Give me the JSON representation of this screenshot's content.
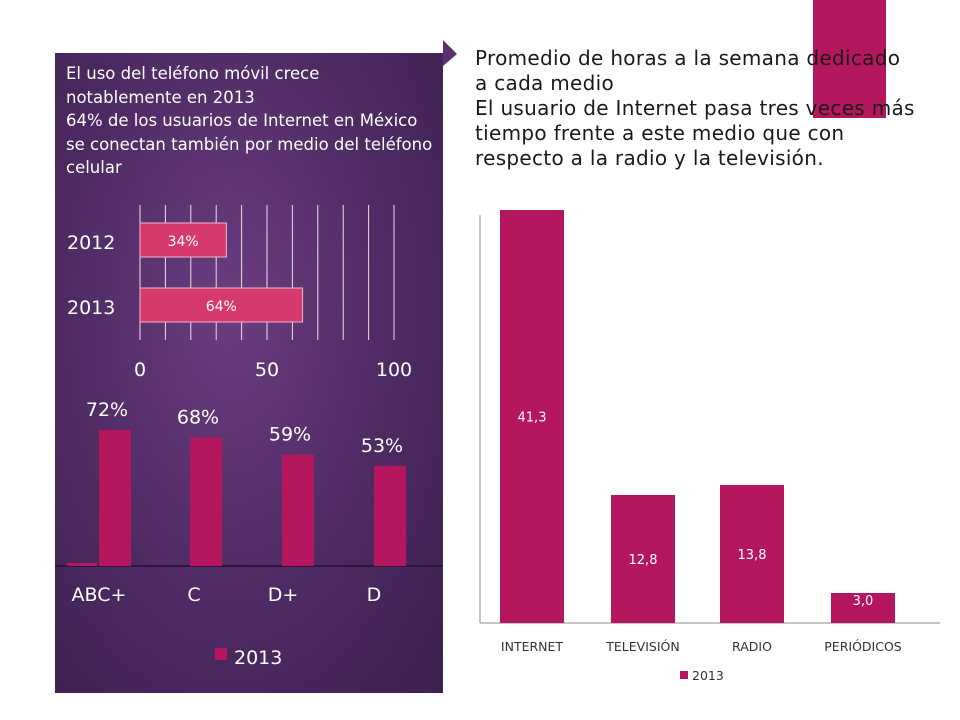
{
  "left_panel": {
    "lines": [
      "El uso del  teléfono móvil crece notablemente en 2013",
      "64% de los usuarios de Internet en México se conectan también por medio del teléfono celular"
    ]
  },
  "right_header": {
    "lines": [
      "Promedio de horas a la semana dedicado a cada medio",
      "El usuario de Internet pasa tres veces más tiempo frente a este medio que con respecto a la radio y la televisión."
    ]
  },
  "colors": {
    "bar": "#b5175f",
    "panel": "#4e2a62",
    "text_light": "#ffffff"
  },
  "chart_data": [
    {
      "type": "bar",
      "orientation": "horizontal",
      "categories": [
        "2012",
        "2013"
      ],
      "values": [
        34,
        64
      ],
      "data_labels": [
        "34%",
        "64%"
      ],
      "xlim": [
        0,
        100
      ],
      "x_ticks": [
        "0",
        "50",
        "100"
      ],
      "grid": "vertical"
    },
    {
      "type": "bar",
      "categories": [
        "ABC+",
        "C",
        "D+",
        "D"
      ],
      "values": [
        72,
        68,
        59,
        53
      ],
      "data_labels": [
        "72%",
        "68%",
        "59%",
        "53%"
      ],
      "legend": [
        "2013"
      ],
      "legend_position": "bottom"
    },
    {
      "type": "bar",
      "categories": [
        "INTERNET",
        "TELEVISIÓN",
        "RADIO",
        "PERIÓDICOS"
      ],
      "values": [
        41.3,
        12.8,
        13.8,
        3.0
      ],
      "data_labels": [
        "41,3",
        "12,8",
        "13,8",
        "3,0"
      ],
      "legend": [
        "2013"
      ],
      "legend_position": "bottom"
    }
  ]
}
